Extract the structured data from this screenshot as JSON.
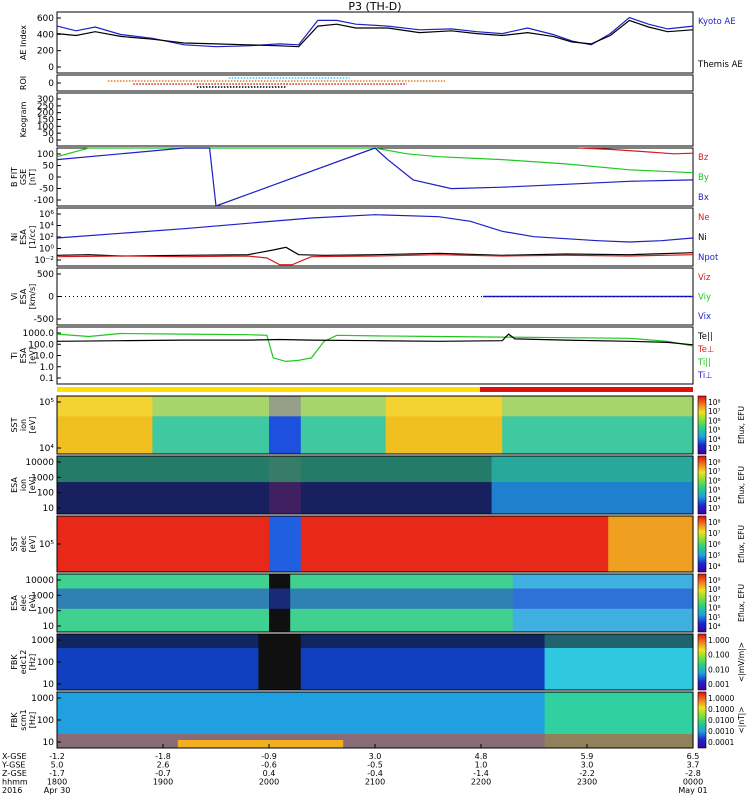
{
  "title": "P3 (TH-D)",
  "colors": {
    "red": "#d21e1e",
    "green": "#1ec81e",
    "blue": "#1e1ec8",
    "black": "#000000",
    "cyan": "#30c8ff",
    "orange": "#e07820",
    "mode_yellow": "#ffe000",
    "mode_red": "#e01010",
    "spectro_low": "#1e28c8",
    "spectro_mid": "#28e050",
    "spectro_high": "#e82018"
  },
  "chart_data": [
    {
      "type": "line",
      "panel": "ae",
      "ylabel": "AE Index",
      "yticks": [
        "600",
        "400",
        "200",
        "0"
      ],
      "ylim": [
        0,
        650
      ],
      "legend": [
        {
          "text": "Kyoto AE",
          "color": "blue"
        },
        {
          "text": "Themis AE",
          "color": "black"
        }
      ],
      "x": [
        0,
        0.03,
        0.06,
        0.1,
        0.15,
        0.2,
        0.25,
        0.3,
        0.35,
        0.38,
        0.41,
        0.44,
        0.47,
        0.52,
        0.57,
        0.62,
        0.66,
        0.7,
        0.74,
        0.78,
        0.81,
        0.84,
        0.87,
        0.9,
        0.93,
        0.96,
        1.0
      ],
      "series": [
        {
          "name": "Kyoto AE",
          "color": "blue",
          "values": [
            500,
            450,
            490,
            410,
            370,
            300,
            280,
            290,
            310,
            300,
            560,
            560,
            520,
            500,
            460,
            470,
            440,
            420,
            480,
            410,
            340,
            300,
            420,
            590,
            520,
            470,
            500
          ]
        },
        {
          "name": "Themis AE",
          "color": "black",
          "values": [
            420,
            400,
            440,
            390,
            360,
            320,
            310,
            300,
            290,
            280,
            500,
            520,
            480,
            480,
            430,
            450,
            420,
            400,
            430,
            390,
            330,
            310,
            400,
            560,
            490,
            440,
            460
          ]
        }
      ]
    },
    {
      "type": "scatter",
      "panel": "roi",
      "ylabel": "ROI",
      "yticks": [
        "0"
      ],
      "series": [
        {
          "color": "cyan",
          "x": [
            0.27,
            0.46
          ]
        },
        {
          "color": "orange",
          "x": [
            0.08,
            0.61
          ]
        },
        {
          "color": "red",
          "x": [
            0.12,
            0.55
          ]
        },
        {
          "color": "black",
          "x": [
            0.22,
            0.36
          ]
        }
      ]
    },
    {
      "type": "scatter",
      "panel": "keogram",
      "ylabel": "Keogram",
      "yticks": [
        "300",
        "250",
        "200",
        "150",
        "100",
        "50",
        "0"
      ],
      "ylim": [
        0,
        300
      ]
    },
    {
      "type": "line",
      "panel": "bfit",
      "ylabel": "B FIT\nGSE\n[nT]",
      "yticks": [
        "100",
        "50",
        "0",
        "-50",
        "-100"
      ],
      "ylim": [
        -100,
        100
      ],
      "legend": [
        {
          "text": "Bz",
          "color": "red"
        },
        {
          "text": "By",
          "color": "green"
        },
        {
          "text": "Bx",
          "color": "blue"
        }
      ],
      "series": [
        {
          "name": "Bz",
          "color": "red",
          "x": [
            0.82,
            0.87,
            0.92,
            0.97,
            1.0
          ],
          "values": [
            100,
            95,
            88,
            80,
            82
          ]
        },
        {
          "name": "By",
          "color": "green",
          "x": [
            0,
            0.05,
            0.5,
            0.55,
            0.6,
            0.7,
            0.8,
            0.9,
            1.0
          ],
          "values": [
            70,
            100,
            100,
            80,
            70,
            60,
            45,
            25,
            15
          ]
        },
        {
          "name": "Bx",
          "color": "blue",
          "x": [
            0,
            0.1,
            0.2,
            0.24,
            0.25,
            0.5,
            0.52,
            0.56,
            0.62,
            0.7,
            0.8,
            0.9,
            1.0
          ],
          "values": [
            60,
            80,
            100,
            100,
            -100,
            100,
            60,
            -10,
            -40,
            -35,
            -25,
            -15,
            -10
          ]
        }
      ]
    },
    {
      "type": "line",
      "panel": "ni",
      "ylabel": "Ni\nESA\n[1/cc]",
      "yticks": [
        "10⁶",
        "10⁴",
        "10²",
        "10⁰",
        "10⁻²"
      ],
      "ylim": [
        -2.2,
        6.5
      ],
      "legend": [
        {
          "text": "Ne",
          "color": "red"
        },
        {
          "text": "Ni",
          "color": "black"
        },
        {
          "text": "Npot",
          "color": "blue"
        }
      ],
      "series": [
        {
          "name": "Npot",
          "color": "blue",
          "x": [
            0,
            0.1,
            0.2,
            0.3,
            0.4,
            0.5,
            0.6,
            0.65,
            0.7,
            0.75,
            0.8,
            0.85,
            0.9,
            0.95,
            1.0
          ],
          "values": [
            2,
            2.7,
            3.4,
            4.2,
            5,
            5.5,
            5.2,
            4.5,
            3,
            2.2,
            1.9,
            1.6,
            1.4,
            1.6,
            2.0
          ]
        },
        {
          "name": "Ni",
          "color": "black",
          "x": [
            0,
            0.05,
            0.1,
            0.2,
            0.3,
            0.34,
            0.36,
            0.38,
            0.42,
            0.5,
            0.6,
            0.7,
            0.8,
            0.9,
            1.0
          ],
          "values": [
            -0.6,
            -0.5,
            -0.7,
            -0.6,
            -0.5,
            0.2,
            0.6,
            -0.5,
            -0.6,
            -0.5,
            -0.3,
            -0.6,
            -0.4,
            -0.5,
            -0.2
          ]
        },
        {
          "name": "Ne",
          "color": "red",
          "x": [
            0,
            0.1,
            0.2,
            0.3,
            0.33,
            0.35,
            0.37,
            0.4,
            0.5,
            0.6,
            0.7,
            0.8,
            0.9,
            1.0
          ],
          "values": [
            -0.8,
            -0.7,
            -0.8,
            -0.7,
            -1.0,
            -2.0,
            -2.0,
            -0.8,
            -0.7,
            -0.5,
            -0.7,
            -0.6,
            -0.7,
            -0.5
          ]
        }
      ]
    },
    {
      "type": "line",
      "panel": "vi",
      "ylabel": "Vi\nESA\n[km/s]",
      "yticks": [
        "500",
        "0",
        "-500"
      ],
      "ylim": [
        -900,
        900
      ],
      "legend": [
        {
          "text": "Viz",
          "color": "red"
        },
        {
          "text": "Viy",
          "color": "green"
        },
        {
          "text": "Vix",
          "color": "blue"
        }
      ],
      "series": [
        {
          "name": "Viz",
          "color": "red",
          "x": [
            0.67,
            1.0
          ],
          "values": [
            0,
            0
          ]
        },
        {
          "name": "Viy",
          "color": "green",
          "x": [
            0.67,
            1.0
          ],
          "values": [
            0,
            0
          ]
        },
        {
          "name": "Vix",
          "color": "blue",
          "x": [
            0.67,
            1.0
          ],
          "values": [
            0,
            0
          ]
        }
      ]
    },
    {
      "type": "line",
      "panel": "ti",
      "ylabel": "Ti\nESA\n[eV]",
      "yticks": [
        "1000.0",
        "100.0",
        "10.0",
        "1.0",
        "0.1"
      ],
      "ylim": [
        -1.2,
        3.6
      ],
      "legend": [
        {
          "text": "Te||",
          "color": "black"
        },
        {
          "text": "Te⊥",
          "color": "red"
        },
        {
          "text": "Ti||",
          "color": "green"
        },
        {
          "text": "Ti⊥",
          "color": "blue"
        }
      ],
      "series": [
        {
          "name": "Ti||",
          "color": "green",
          "x": [
            0,
            0.05,
            0.1,
            0.2,
            0.3,
            0.33,
            0.34,
            0.36,
            0.38,
            0.4,
            0.42,
            0.44,
            0.5,
            0.6,
            0.7,
            0.8,
            0.9,
            0.96,
            1.0
          ],
          "values": [
            3.0,
            2.8,
            3.05,
            3.0,
            2.95,
            2.9,
            1.0,
            0.7,
            0.8,
            1.0,
            2.4,
            2.9,
            2.85,
            2.8,
            2.75,
            2.7,
            2.65,
            2.4,
            2.0
          ]
        },
        {
          "name": "Te||",
          "color": "black",
          "x": [
            0,
            0.1,
            0.2,
            0.3,
            0.35,
            0.4,
            0.5,
            0.6,
            0.7,
            0.71,
            0.72,
            0.8,
            0.9,
            0.96,
            1.0
          ],
          "values": [
            2.4,
            2.45,
            2.5,
            2.5,
            2.55,
            2.5,
            2.45,
            2.4,
            2.45,
            3.0,
            2.6,
            2.5,
            2.4,
            2.3,
            2.1
          ]
        }
      ]
    },
    {
      "type": "heatmap",
      "panel": "sst_ion",
      "ylabel": "SST\nion\n[eV]",
      "yticks": [
        "10⁵",
        "10⁴"
      ],
      "colorbar": "Eflux, EFU",
      "colorbar_ticks": [
        "10⁸",
        "10⁷",
        "10⁶",
        "10⁵",
        "10⁴",
        "10³"
      ]
    },
    {
      "type": "heatmap",
      "panel": "esa_ion",
      "ylabel": "ESA\nion\n[eV]",
      "yticks": [
        "10000",
        "1000",
        "100",
        "10"
      ],
      "colorbar": "Eflux, EFU",
      "colorbar_ticks": [
        "10⁸",
        "10⁷",
        "10⁶",
        "10⁵",
        "10⁴",
        "10³"
      ]
    },
    {
      "type": "heatmap",
      "panel": "sst_elec",
      "ylabel": "SST\nelec\n[eV]",
      "yticks": [
        "10⁵"
      ],
      "colorbar": "Eflux, EFU",
      "colorbar_ticks": [
        "10⁸",
        "10⁷",
        "10⁶",
        "10⁵",
        "10⁴"
      ]
    },
    {
      "type": "heatmap",
      "panel": "esa_elec",
      "ylabel": "ESA\nelec\n[eV]",
      "yticks": [
        "10000",
        "1000",
        "100",
        "10"
      ],
      "colorbar": "Eflux, EFU",
      "colorbar_ticks": [
        "10⁹",
        "10⁸",
        "10⁷",
        "10⁶",
        "10⁵",
        "10⁴"
      ]
    },
    {
      "type": "heatmap",
      "panel": "fbk_edc12",
      "ylabel": "FBK\nedc12\n[Hz]",
      "yticks": [
        "1000",
        "100",
        "10"
      ],
      "colorbar": "<|mV/m|>",
      "colorbar_ticks": [
        "1.000",
        "0.100",
        "0.010",
        "0.001"
      ]
    },
    {
      "type": "heatmap",
      "panel": "fbk_scm1",
      "ylabel": "FBK\nscm1\n[Hz]",
      "yticks": [
        "1000",
        "100",
        "10"
      ],
      "colorbar": "<|nT|>",
      "colorbar_ticks": [
        "1.0000",
        "0.1000",
        "0.0100",
        "0.0010",
        "0.0001"
      ]
    }
  ],
  "x_axis": {
    "row_labels": [
      "X-GSE",
      "Y-GSE",
      "Z-GSE",
      "hhmm",
      "2016"
    ],
    "columns": [
      [
        "-1.2",
        "5.0",
        "-1.7",
        "1800",
        "Apr 30"
      ],
      [
        "-1.8",
        "2.6",
        "-0.7",
        "1900",
        ""
      ],
      [
        "-0.9",
        "-0.6",
        "0.4",
        "2000",
        ""
      ],
      [
        "3.0",
        "-0.5",
        "-0.4",
        "2100",
        ""
      ],
      [
        "4.8",
        "1.0",
        "-1.4",
        "2200",
        ""
      ],
      [
        "5.9",
        "3.0",
        "-2.2",
        "2300",
        ""
      ],
      [
        "6.5",
        "3.7",
        "-2.8",
        "0000",
        "May 01"
      ]
    ]
  }
}
